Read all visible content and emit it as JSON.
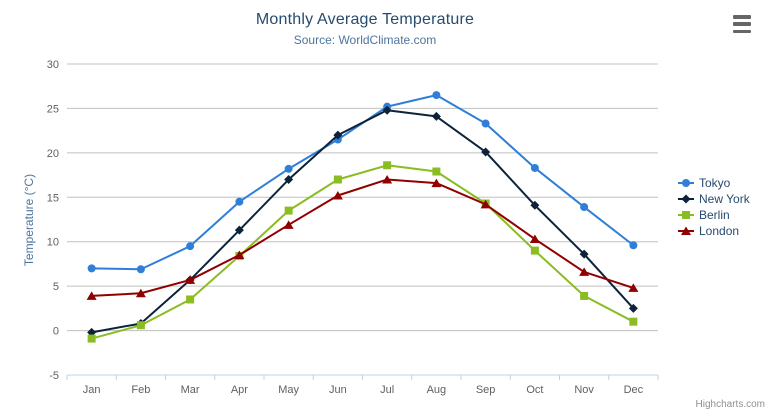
{
  "chart": {
    "title": "Monthly Average Temperature",
    "subtitle": "Source: WorldClimate.com",
    "credits": "Highcharts.com",
    "export_menu_icon": "hamburger-icon"
  },
  "colors": {
    "title": "#274b6d",
    "subtitle": "#4d759e",
    "axis_title": "#4d759e",
    "tick_label": "#606060",
    "grid": "#c0c0c0",
    "axis_line": "#c0d0e0",
    "legend_text": "#274b6d",
    "credits": "#909090",
    "export_icon": "#666666",
    "background": "#ffffff"
  },
  "chart_data": {
    "type": "line",
    "title": "Monthly Average Temperature",
    "subtitle": "Source: WorldClimate.com",
    "categories": [
      "Jan",
      "Feb",
      "Mar",
      "Apr",
      "May",
      "Jun",
      "Jul",
      "Aug",
      "Sep",
      "Oct",
      "Nov",
      "Dec"
    ],
    "series": [
      {
        "name": "Tokyo",
        "color": "#2f7ed8",
        "marker": "circle",
        "values": [
          7.0,
          6.9,
          9.5,
          14.5,
          18.2,
          21.5,
          25.2,
          26.5,
          23.3,
          18.3,
          13.9,
          9.6
        ]
      },
      {
        "name": "New York",
        "color": "#0d233a",
        "marker": "diamond",
        "values": [
          -0.2,
          0.8,
          5.7,
          11.3,
          17.0,
          22.0,
          24.8,
          24.1,
          20.1,
          14.1,
          8.6,
          2.5
        ]
      },
      {
        "name": "Berlin",
        "color": "#8bbc21",
        "marker": "square",
        "values": [
          -0.9,
          0.6,
          3.5,
          8.4,
          13.5,
          17.0,
          18.6,
          17.9,
          14.3,
          9.0,
          3.9,
          1.0
        ]
      },
      {
        "name": "London",
        "color": "#910000",
        "marker": "triangle",
        "values": [
          3.9,
          4.2,
          5.7,
          8.5,
          11.9,
          15.2,
          17.0,
          16.6,
          14.2,
          10.3,
          6.6,
          4.8
        ]
      }
    ],
    "xlabel": "",
    "ylabel": "Temperature (°C)",
    "ylim": [
      -5,
      30
    ],
    "ytick_step": 5,
    "yticks": [
      -5,
      0,
      5,
      10,
      15,
      20,
      25,
      30
    ],
    "grid": true,
    "legend_position": "right"
  }
}
